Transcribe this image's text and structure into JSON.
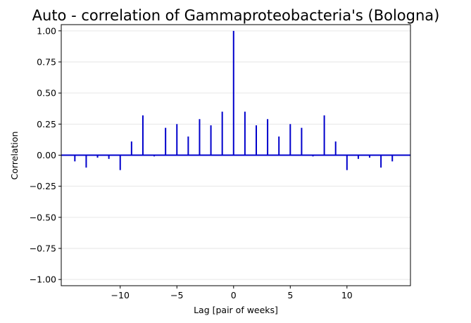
{
  "chart_data": {
    "type": "bar",
    "style": "stem",
    "title": "Auto - correlation of Gammaproteobacteria's (Bologna)",
    "xlabel": "Lag [pair of weeks]",
    "ylabel": "Correlation",
    "xlim": [
      -15.2,
      15.6
    ],
    "ylim": [
      -1.05,
      1.05
    ],
    "xticks": [
      -10,
      -5,
      0,
      5,
      10
    ],
    "xtick_labels": [
      "−10",
      "−5",
      "0",
      "5",
      "10"
    ],
    "yticks": [
      1.0,
      0.75,
      0.5,
      0.25,
      0.0,
      -0.25,
      -0.5,
      -0.75,
      -1.0
    ],
    "ytick_labels": [
      "1.00",
      "0.75",
      "0.50",
      "0.25",
      "0.00",
      "−0.25",
      "−0.50",
      "−0.75",
      "−1.00"
    ],
    "grid": "horizontal",
    "series": [
      {
        "name": "autocorrelation",
        "color": "#0000cc",
        "x": [
          -14,
          -13,
          -12,
          -11,
          -10,
          -9,
          -8,
          -7,
          -6,
          -5,
          -4,
          -3,
          -2,
          -1,
          0,
          1,
          2,
          3,
          4,
          5,
          6,
          7,
          8,
          9,
          10,
          11,
          12,
          13,
          14
        ],
        "values": [
          -0.05,
          -0.1,
          -0.02,
          -0.03,
          -0.12,
          0.11,
          0.32,
          -0.01,
          0.22,
          0.25,
          0.15,
          0.29,
          0.24,
          0.35,
          1.0,
          0.35,
          0.24,
          0.29,
          0.15,
          0.25,
          0.22,
          -0.01,
          0.32,
          0.11,
          -0.12,
          -0.03,
          -0.02,
          -0.1,
          -0.05
        ]
      }
    ],
    "baseline": {
      "y": 0,
      "color": "#0000cc"
    }
  }
}
